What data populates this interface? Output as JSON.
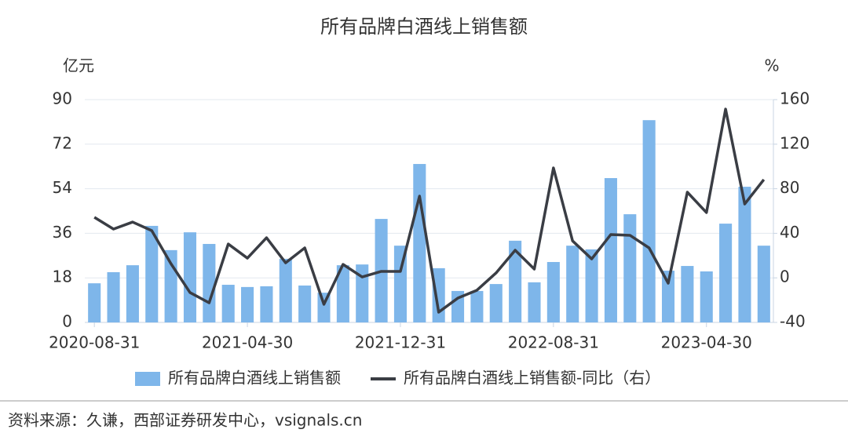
{
  "chart_data": {
    "type": "bar_line",
    "title": "所有品牌白酒线上销售额",
    "y_label": "亿元",
    "y2_label": "%",
    "categories": [
      "2020-08-31",
      null,
      null,
      null,
      null,
      null,
      null,
      null,
      "2021-04-30",
      null,
      null,
      null,
      null,
      null,
      null,
      null,
      "2021-12-31",
      null,
      null,
      null,
      null,
      null,
      null,
      null,
      "2022-08-31",
      null,
      null,
      null,
      null,
      null,
      null,
      null,
      "2023-04-30",
      null,
      null,
      null
    ],
    "series": [
      {
        "name": "所有品牌白酒线上销售额",
        "type": "bar",
        "color": "#7eb6ea",
        "values": [
          15.8,
          20.3,
          23.1,
          39,
          29.2,
          36.4,
          31.7,
          15.2,
          14.3,
          14.6,
          25.7,
          14.9,
          12,
          23.1,
          23.4,
          41.8,
          31,
          64,
          21.9,
          12.7,
          12.7,
          15.5,
          33,
          16.2,
          24.4,
          31,
          29.5,
          58.3,
          43.7,
          81.7,
          20.9,
          22.8,
          20.6,
          39.9,
          54.8,
          31
        ]
      },
      {
        "name": "所有品牌白酒线上销售额-同比（右）",
        "type": "line",
        "axis": "y2",
        "color": "#3a3d44",
        "values": [
          54.4,
          43.8,
          50.1,
          42.4,
          12.8,
          -13.2,
          -22.4,
          30.4,
          17.7,
          36,
          13.5,
          26.9,
          -23.8,
          12.1,
          0.8,
          5.8,
          5.8,
          73.4,
          -30.8,
          -18.2,
          -11.1,
          4.4,
          24.8,
          7.9,
          98.7,
          33.2,
          17,
          38.9,
          38.2,
          26.9,
          -4.8,
          76.9,
          58.6,
          151.5,
          66.3,
          88.2
        ]
      }
    ],
    "ylim": [
      0,
      90
    ],
    "yticks": [
      0,
      18,
      36,
      54,
      72,
      90
    ],
    "y2lim": [
      -40,
      160
    ],
    "y2ticks": [
      -40,
      0,
      40,
      80,
      120,
      160
    ],
    "grid": true,
    "source": "资料来源：久谦，西部证券研发中心，vsignals.cn"
  }
}
